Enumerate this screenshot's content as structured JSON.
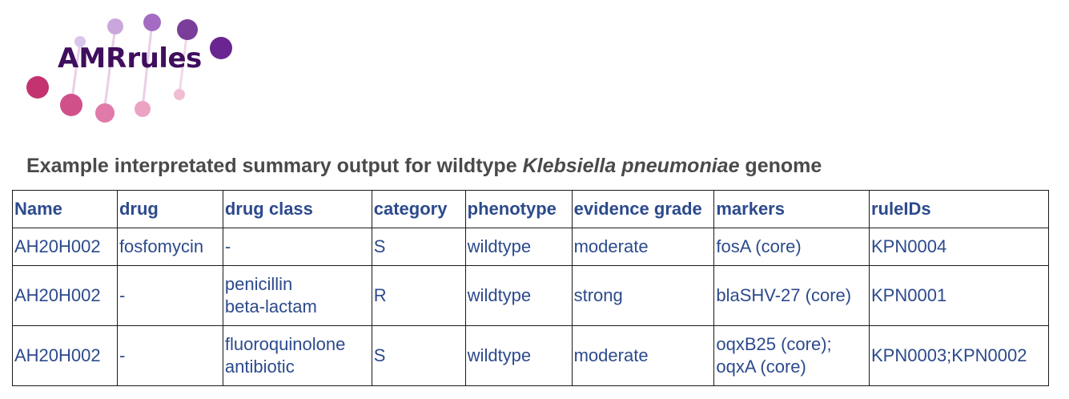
{
  "logo": {
    "part1": "AMR",
    "part2": "rules"
  },
  "heading": {
    "prefix": "Example interpretated summary output for wildtype ",
    "organism": "Klebsiella pneumoniae",
    "suffix": " genome"
  },
  "table": {
    "headers": [
      "Name",
      "drug",
      "drug class",
      "category",
      "phenotype",
      "evidence grade",
      "markers",
      "ruleIDs"
    ],
    "rows": [
      {
        "name": "AH20H002",
        "drug": "fosfomycin",
        "drug_class": "-",
        "category": "S",
        "phenotype": "wildtype",
        "evidence_grade": "moderate",
        "markers": "fosA (core)",
        "rule_ids": "KPN0004"
      },
      {
        "name": "AH20H002",
        "drug": "-",
        "drug_class": "penicillin\nbeta-lactam",
        "category": "R",
        "phenotype": "wildtype",
        "evidence_grade": "strong",
        "markers": "blaSHV-27 (core)",
        "rule_ids": "KPN0001"
      },
      {
        "name": "AH20H002",
        "drug": "-",
        "drug_class": "fluoroquinolone\nantibiotic",
        "category": "S",
        "phenotype": "wildtype",
        "evidence_grade": "moderate",
        "markers": "oqxB25 (core);\noqxA (core)",
        "rule_ids": "KPN0003;KPN0002"
      }
    ]
  }
}
